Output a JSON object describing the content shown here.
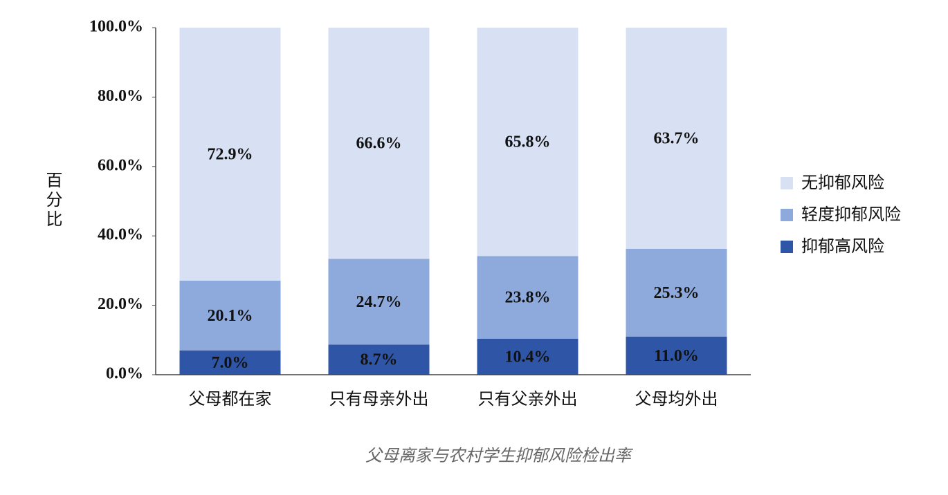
{
  "chart_data": {
    "type": "stacked-bar",
    "y_label": "百分比",
    "caption": "父母离家与农村学生抑郁风险检出率",
    "categories": [
      "父母都在家",
      "只有母亲外出",
      "只有父亲外出",
      "父母均外出"
    ],
    "series": [
      {
        "name": "抑郁高风险",
        "color": "#2f56a6",
        "values": [
          7.0,
          8.7,
          10.4,
          11.0
        ],
        "value_labels": [
          "7.0%",
          "8.7%",
          "10.4%",
          "11.0%"
        ]
      },
      {
        "name": "轻度抑郁风险",
        "color": "#8eaadd",
        "values": [
          20.1,
          24.7,
          23.8,
          25.3
        ],
        "value_labels": [
          "20.1%",
          "24.7%",
          "23.8%",
          "25.3%"
        ]
      },
      {
        "name": "无抑郁风险",
        "color": "#d7e1f3",
        "values": [
          72.9,
          66.6,
          65.8,
          63.7
        ],
        "value_labels": [
          "72.9%",
          "66.6%",
          "65.8%",
          "63.7%"
        ]
      }
    ],
    "ylim": [
      0,
      100
    ],
    "yticks": [
      {
        "value": 0,
        "label": "0.0%"
      },
      {
        "value": 20,
        "label": "20.0%"
      },
      {
        "value": 40,
        "label": "40.0%"
      },
      {
        "value": 60,
        "label": "60.0%"
      },
      {
        "value": 80,
        "label": "80.0%"
      },
      {
        "value": 100,
        "label": "100.0%"
      }
    ],
    "legend": "right"
  }
}
